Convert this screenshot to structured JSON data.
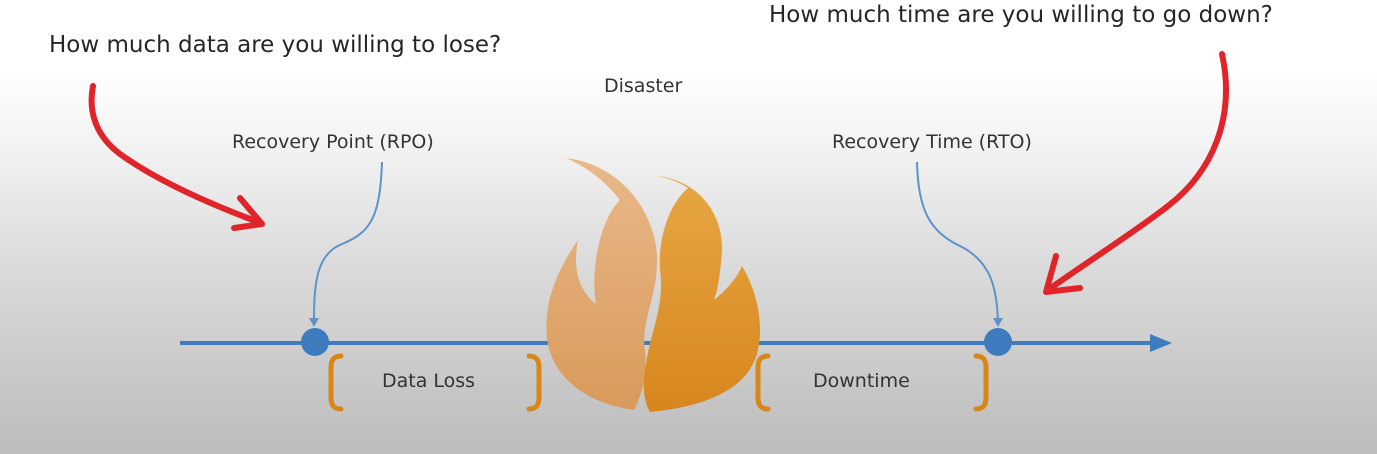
{
  "questions": {
    "left": "How much data are you willing to lose?",
    "right": "How much time are you willing to go down?"
  },
  "labels": {
    "disaster": "Disaster",
    "rpo": "Recovery Point (RPO)",
    "rto": "Recovery Time (RTO)",
    "data_loss": "Data Loss",
    "downtime": "Downtime"
  },
  "icons": {
    "disaster": "flame-icon"
  },
  "colors": {
    "timeline": "#3f7cbf",
    "bracket": "#d8861a",
    "annotation_arrow": "#e0252a",
    "flame_left": "#e2ac73",
    "flame_right": "#dd9428"
  }
}
